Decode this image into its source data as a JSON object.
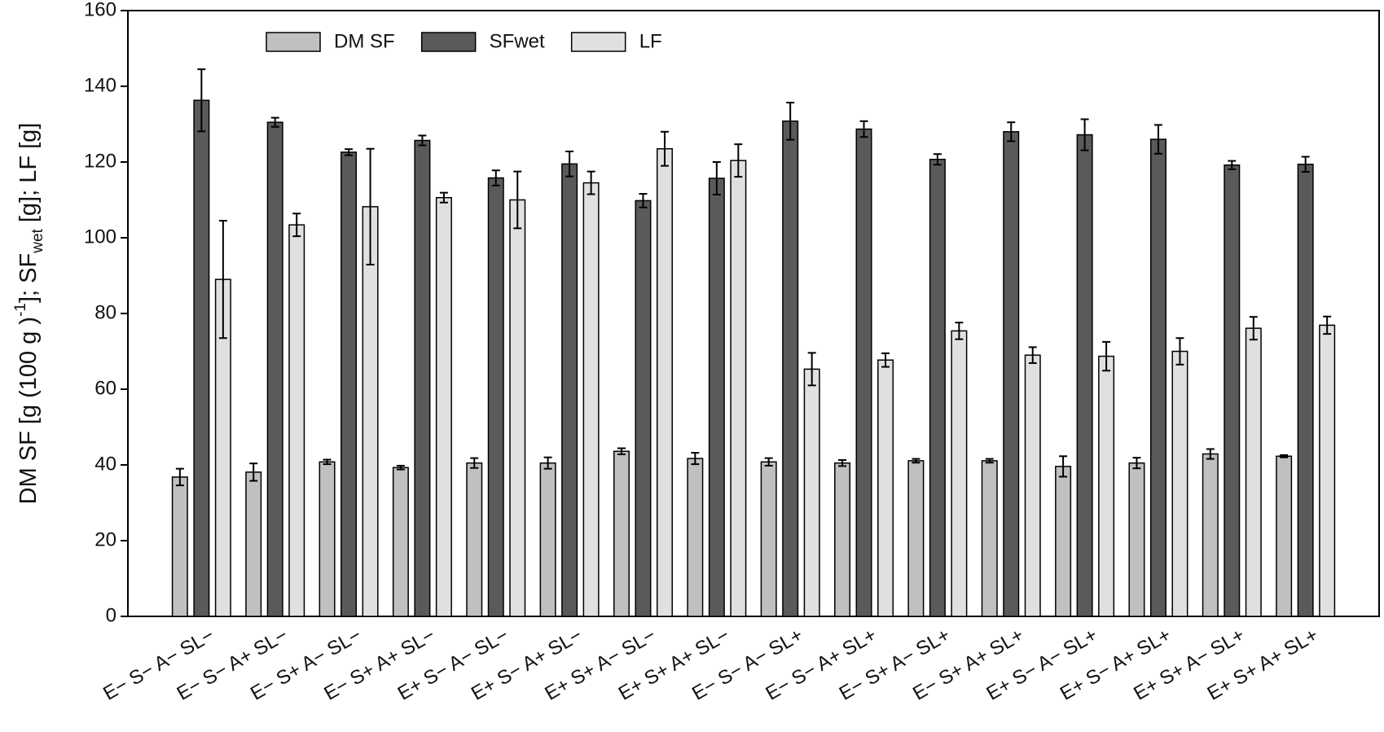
{
  "chart_data": {
    "type": "bar",
    "y_label": [
      "DM SF [g (100 g )",
      "-1",
      "]; SF",
      "wet",
      " [g]; LF [g]"
    ],
    "categories": [
      "E− S− A− SL−",
      "E− S− A+ SL−",
      "E− S+ A− SL−",
      "E− S+ A+ SL−",
      "E+ S− A− SL−",
      "E+ S− A+ SL−",
      "E+ S+ A− SL−",
      "E+ S+ A+ SL−",
      "E− S− A− SL+",
      "E− S− A+ SL+",
      "E− S+ A− SL+",
      "E− S+ A+ SL+",
      "E+ S− A− SL+",
      "E+ S− A+ SL+",
      "E+ S+ A− SL+",
      "E+ S+ A+ SL+"
    ],
    "series": [
      {
        "name": "DM SF",
        "color": "#c0c0c0",
        "values": [
          36.8,
          38.1,
          40.8,
          39.3,
          40.5,
          40.5,
          43.6,
          41.7,
          40.8,
          40.5,
          41.1,
          41.1,
          39.6,
          40.5,
          42.9,
          42.3
        ],
        "errors": [
          2.2,
          2.3,
          0.6,
          0.5,
          1.3,
          1.5,
          0.8,
          1.5,
          1,
          0.8,
          0.5,
          0.5,
          2.7,
          1.4,
          1.3,
          0.3
        ]
      },
      {
        "name": "SFwet",
        "color": "#5a5a5a",
        "values": [
          136.3,
          130.5,
          122.6,
          125.7,
          115.8,
          119.5,
          109.8,
          115.7,
          130.8,
          128.7,
          120.7,
          128,
          127.2,
          126,
          119.2,
          119.4
        ],
        "errors": [
          8.2,
          1.2,
          0.8,
          1.3,
          2,
          3.3,
          1.8,
          4.3,
          4.9,
          2.1,
          1.4,
          2.5,
          4.1,
          3.8,
          1.1,
          2
        ]
      },
      {
        "name": "LF",
        "color": "#e0e0e0",
        "values": [
          89,
          103.4,
          108.2,
          110.6,
          110,
          114.5,
          123.5,
          120.4,
          65.3,
          67.7,
          75.4,
          69,
          68.7,
          70,
          76.1,
          76.9
        ],
        "errors": [
          15.5,
          3,
          15.3,
          1.3,
          7.5,
          3,
          4.5,
          4.3,
          4.3,
          1.8,
          2.2,
          2.1,
          3.8,
          3.5,
          3,
          2.3
        ]
      }
    ],
    "ylim": [
      0,
      160
    ],
    "yticks": [
      0,
      20,
      40,
      60,
      80,
      100,
      120,
      140,
      160
    ],
    "legend": "top-left"
  }
}
